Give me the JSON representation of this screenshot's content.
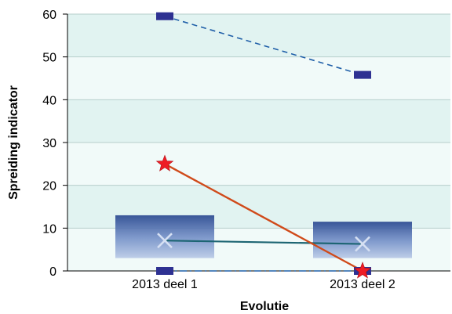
{
  "chart_data": {
    "type": "box",
    "xlabel": "Evolutie",
    "ylabel": "Spreiding indicator",
    "categories": [
      "2013 deel 1",
      "2013 deel 2"
    ],
    "ylim": [
      0,
      60
    ],
    "yticks": [
      0,
      10,
      20,
      30,
      40,
      50,
      60
    ],
    "grid": true,
    "boxes": [
      {
        "category": "2013 deel 1",
        "q1": 3,
        "q3": 13,
        "mean": 7.1,
        "min": 0,
        "max": 59.5
      },
      {
        "category": "2013 deel 2",
        "q1": 3,
        "q3": 11.5,
        "mean": 6.3,
        "min": 0,
        "max": 45.8
      }
    ],
    "series": [
      {
        "kind": "max",
        "style": "dashed",
        "values": [
          59.5,
          45.8
        ]
      },
      {
        "kind": "min",
        "style": "dash-dot",
        "values": [
          0,
          0
        ]
      },
      {
        "kind": "mean",
        "style": "solid",
        "values": [
          7.1,
          6.3
        ]
      },
      {
        "kind": "highlight",
        "style": "solid",
        "marker": "star",
        "values": [
          25,
          0
        ]
      }
    ],
    "colors": {
      "band_light": "#f1faf9",
      "band_dark": "#e1f3f1",
      "box": "#3d5b9e",
      "range_marker": "#2e3192",
      "range_line": "#1f5fa8",
      "mean_line": "#1d6573",
      "highlight": "#d04a1a",
      "star": "#ee1c25"
    }
  }
}
